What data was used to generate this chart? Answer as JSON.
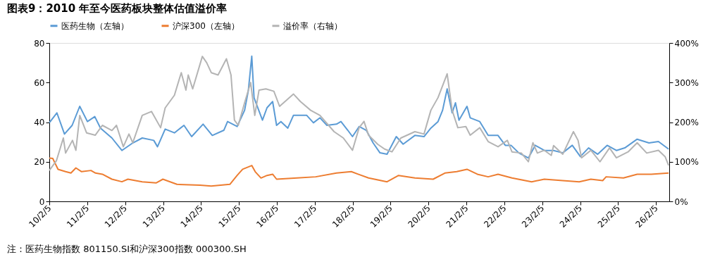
{
  "chart_data": {
    "type": "line",
    "title": "图表9：2010 年至今医药板块整体估值溢价率",
    "xlim": [
      "2010-02-05",
      "2026-06-12"
    ],
    "xticks": [
      {
        "value": "2010-02-05",
        "label": "10/2/5"
      },
      {
        "value": "2011-02-05",
        "label": "11/2/5"
      },
      {
        "value": "2012-02-05",
        "label": "12/2/5"
      },
      {
        "value": "2013-02-05",
        "label": "13/2/5"
      },
      {
        "value": "2014-02-05",
        "label": "14/2/5"
      },
      {
        "value": "2015-02-05",
        "label": "15/2/5"
      },
      {
        "value": "2016-02-05",
        "label": "16/2/5"
      },
      {
        "value": "2017-02-05",
        "label": "17/2/5"
      },
      {
        "value": "2018-02-05",
        "label": "18/2/5"
      },
      {
        "value": "2019-02-05",
        "label": "19/2/5"
      },
      {
        "value": "2020-02-05",
        "label": "20/2/5"
      },
      {
        "value": "2021-02-05",
        "label": "21/2/5"
      },
      {
        "value": "2022-02-05",
        "label": "22/2/5"
      },
      {
        "value": "2023-02-05",
        "label": "23/2/5"
      },
      {
        "value": "2024-02-05",
        "label": "24/2/5"
      },
      {
        "value": "2025-02-05",
        "label": "25/2/5"
      },
      {
        "value": "2026-02-05",
        "label": "26/2/5"
      }
    ],
    "ylim": [
      0,
      80
    ],
    "yticks": [
      0,
      20,
      40,
      60,
      80
    ],
    "y2lim": [
      0,
      400
    ],
    "y2ticks": [
      {
        "value": 0,
        "label": "0%"
      },
      {
        "value": 100,
        "label": "100%"
      },
      {
        "value": 200,
        "label": "200%"
      },
      {
        "value": 300,
        "label": "300%"
      },
      {
        "value": 400,
        "label": "400%"
      }
    ],
    "legend": "top",
    "series": [
      {
        "name": "医药生物（左轴）",
        "color": "#5b9bd5",
        "x": [
          "2010-02-05",
          "2010-04-19",
          "2010-07-01",
          "2010-09-13",
          "2010-11-25",
          "2011-02-07",
          "2011-04-19",
          "2011-06-13",
          "2011-10-01",
          "2012-01-05",
          "2012-04-19",
          "2012-07-19",
          "2012-11-07",
          "2012-12-13",
          "2013-02-25",
          "2013-05-25",
          "2013-08-25",
          "2013-11-07",
          "2014-02-25",
          "2014-05-25",
          "2014-09-13",
          "2014-10-19",
          "2015-01-19",
          "2015-04-01",
          "2015-05-07",
          "2015-06-09",
          "2015-07-01",
          "2015-09-20",
          "2015-11-03",
          "2015-12-27",
          "2016-02-03",
          "2016-03-16",
          "2016-05-21",
          "2016-07-15",
          "2016-11-18",
          "2017-01-23",
          "2017-03-27",
          "2017-06-02",
          "2017-09-02",
          "2017-10-15",
          "2017-12-20",
          "2018-02-03",
          "2018-04-08",
          "2018-06-16",
          "2018-08-21",
          "2018-10-26",
          "2019-01-02",
          "2019-04-01",
          "2019-06-06",
          "2019-09-27",
          "2019-12-24",
          "2020-02-28",
          "2020-05-07",
          "2020-06-20",
          "2020-08-03",
          "2020-09-20",
          "2020-10-22",
          "2020-11-25",
          "2021-02-10",
          "2021-03-13",
          "2021-06-13",
          "2021-09-02",
          "2021-12-06",
          "2022-02-14",
          "2022-04-10",
          "2022-06-24",
          "2022-09-24",
          "2022-11-29",
          "2023-02-25",
          "2023-05-25",
          "2023-08-21",
          "2023-11-21",
          "2024-02-07",
          "2024-04-26",
          "2024-07-23",
          "2024-10-22",
          "2025-01-19",
          "2025-04-10",
          "2025-08-07",
          "2025-11-29",
          "2026-02-28",
          "2026-06-06"
        ],
        "values": [
          39.7,
          44.7,
          34,
          38.4,
          48,
          40.3,
          42.8,
          37,
          32,
          25.7,
          29.5,
          32,
          30.8,
          27.6,
          36.5,
          34.6,
          38.4,
          32.7,
          39,
          33.3,
          35.9,
          40.3,
          37.8,
          46,
          56,
          73.3,
          52.3,
          41,
          47.3,
          50.4,
          38.4,
          40.3,
          37,
          43.5,
          43.5,
          39.7,
          42.2,
          38.4,
          39,
          40.3,
          35.9,
          32.7,
          37.8,
          35.9,
          29.5,
          24.5,
          23.8,
          32.7,
          28.9,
          33.3,
          32.7,
          37,
          40.3,
          46,
          56.8,
          44.7,
          49.8,
          41,
          48,
          42.2,
          40.3,
          33.3,
          33.3,
          28.3,
          28.3,
          24.5,
          21.9,
          28.3,
          25.7,
          25.7,
          24.5,
          28.3,
          22.6,
          27,
          23.8,
          28.3,
          25.7,
          27,
          31.4,
          29.5,
          30.2,
          26.4
        ]
      },
      {
        "name": "沪深300（左轴）",
        "color": "#ed7d31",
        "x": [
          "2010-02-05",
          "2010-03-10",
          "2010-04-30",
          "2010-07-12",
          "2010-09-01",
          "2010-10-19",
          "2010-12-13",
          "2011-03-13",
          "2011-04-26",
          "2011-07-01",
          "2011-10-01",
          "2012-01-05",
          "2012-03-03",
          "2012-07-19",
          "2012-11-29",
          "2013-02-03",
          "2013-06-18",
          "2014-01-27",
          "2014-05-15",
          "2014-11-10",
          "2015-01-19",
          "2015-03-13",
          "2015-06-09",
          "2015-07-12",
          "2015-09-06",
          "2015-11-03",
          "2015-12-27",
          "2016-02-03",
          "2016-08-18",
          "2017-02-14",
          "2017-09-02",
          "2018-01-23",
          "2018-07-08",
          "2019-01-02",
          "2019-04-23",
          "2019-09-27",
          "2020-03-21",
          "2020-07-12",
          "2020-11-03",
          "2021-02-10",
          "2021-05-21",
          "2021-09-02",
          "2021-12-06",
          "2022-04-19",
          "2022-10-26",
          "2023-02-25",
          "2023-08-21",
          "2024-01-27",
          "2024-05-18",
          "2024-09-09",
          "2024-10-12",
          "2025-03-28",
          "2025-08-07",
          "2025-12-20",
          "2026-06-06"
        ],
        "values": [
          21.9,
          21.7,
          16.2,
          15,
          14.3,
          16.9,
          15,
          15.6,
          14.3,
          13.7,
          11.2,
          9.9,
          11.2,
          9.9,
          9.3,
          11.2,
          8.6,
          8.2,
          7.7,
          8.6,
          13.1,
          16.2,
          18.1,
          15,
          11.8,
          13.1,
          13.7,
          11.2,
          11.8,
          12.4,
          14.3,
          15,
          11.8,
          9.9,
          13.1,
          11.8,
          11.2,
          14.3,
          15,
          16.2,
          13.7,
          12.4,
          13.7,
          11.8,
          9.9,
          11.2,
          10.5,
          9.9,
          11.2,
          10.5,
          12.4,
          11.8,
          13.7,
          13.7,
          14.3
        ]
      },
      {
        "name": "溢价率（右轴）",
        "color": "#b4b4b4",
        "axis": "y2",
        "x": [
          "2010-02-05",
          "2010-04-15",
          "2010-06-20",
          "2010-07-12",
          "2010-09-16",
          "2010-10-19",
          "2010-11-25",
          "2011-01-30",
          "2011-04-23",
          "2011-07-01",
          "2011-10-01",
          "2011-11-14",
          "2012-01-19",
          "2012-03-13",
          "2012-04-19",
          "2012-07-19",
          "2012-10-16",
          "2013-01-12",
          "2013-02-25",
          "2013-05-25",
          "2013-07-30",
          "2013-09-13",
          "2013-10-05",
          "2013-11-17",
          "2014-02-18",
          "2014-04-01",
          "2014-05-15",
          "2014-07-19",
          "2014-10-08",
          "2014-11-21",
          "2014-12-24",
          "2015-01-30",
          "2015-04-01",
          "2015-05-29",
          "2015-07-08",
          "2015-08-18",
          "2015-10-23",
          "2016-01-08",
          "2016-03-03",
          "2016-07-15",
          "2016-09-20",
          "2016-12-27",
          "2017-03-27",
          "2017-08-10",
          "2017-11-07",
          "2018-02-03",
          "2018-04-08",
          "2018-05-25",
          "2018-07-08",
          "2018-10-05",
          "2018-12-10",
          "2019-02-18",
          "2019-05-15",
          "2019-09-27",
          "2019-12-24",
          "2020-02-28",
          "2020-05-07",
          "2020-08-03",
          "2020-09-20",
          "2020-11-14",
          "2021-01-30",
          "2021-03-13",
          "2021-06-13",
          "2021-09-02",
          "2021-12-06",
          "2022-03-06",
          "2022-04-19",
          "2022-07-19",
          "2022-09-24",
          "2022-11-07",
          "2022-12-20",
          "2023-02-25",
          "2023-05-03",
          "2023-05-25",
          "2023-08-21",
          "2023-12-02",
          "2024-01-16",
          "2024-02-18",
          "2024-05-18",
          "2024-08-14",
          "2024-11-14",
          "2025-01-19",
          "2025-05-12",
          "2025-08-07",
          "2025-11-07",
          "2026-02-28",
          "2026-05-03",
          "2026-06-06"
        ],
        "values": [
          78,
          103,
          160,
          122,
          154,
          129,
          217,
          173,
          167,
          192,
          179,
          192,
          138,
          170,
          148,
          217,
          227,
          186,
          236,
          268,
          325,
          281,
          319,
          284,
          366,
          350,
          325,
          319,
          360,
          319,
          205,
          192,
          249,
          300,
          217,
          281,
          284,
          278,
          240,
          271,
          252,
          230,
          217,
          176,
          160,
          129,
          186,
          202,
          167,
          144,
          132,
          125,
          160,
          176,
          170,
          230,
          262,
          322,
          230,
          186,
          189,
          167,
          186,
          151,
          138,
          154,
          125,
          122,
          100,
          148,
          122,
          129,
          116,
          141,
          119,
          176,
          154,
          110,
          129,
          100,
          135,
          110,
          125,
          148,
          122,
          129,
          113,
          91
        ]
      }
    ],
    "annotations": [
      "注：医药生物指数 801150.SI和沪深300指数 000300.SH"
    ]
  }
}
